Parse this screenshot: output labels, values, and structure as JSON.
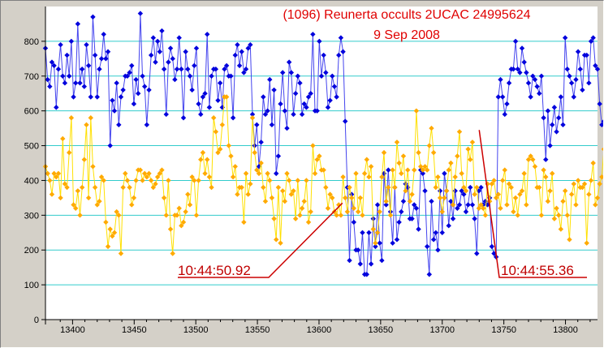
{
  "chart_data": {
    "type": "line",
    "title": "(1096) Reunerta occults 2UCAC 24995624",
    "subtitle": "9 Sep 2008",
    "xlabel": "",
    "ylabel": "",
    "xlim": [
      13378,
      13826
    ],
    "ylim": [
      0,
      900
    ],
    "x_ticks": [
      13400,
      13450,
      13500,
      13550,
      13600,
      13650,
      13700,
      13750,
      13800
    ],
    "y_ticks": [
      0,
      100,
      200,
      300,
      400,
      500,
      600,
      700,
      800
    ],
    "grid": "horizontal",
    "legend": "none",
    "series": [
      {
        "color": "#0000dd",
        "values_note_x_start": 13378,
        "values": [
          780,
          690,
          670,
          740,
          730,
          610,
          720,
          790,
          700,
          680,
          760,
          700,
          800,
          640,
          680,
          850,
          680,
          720,
          670,
          790,
          730,
          640,
          870,
          760,
          640,
          720,
          750,
          820,
          750,
          770,
          500,
          630,
          600,
          680,
          560,
          640,
          660,
          700,
          700,
          710,
          730,
          620,
          690,
          650,
          880,
          700,
          670,
          560,
          660,
          760,
          810,
          740,
          800,
          770,
          830,
          720,
          590,
          740,
          780,
          750,
          690,
          720,
          810,
          720,
          580,
          770,
          720,
          700,
          660,
          730,
          780,
          620,
          590,
          640,
          650,
          820,
          610,
          700,
          720,
          720,
          630,
          680,
          610,
          720,
          730,
          700,
          700,
          580,
          760,
          790,
          730,
          770,
          710,
          720,
          780,
          790,
          590,
          500,
          560,
          440,
          510,
          640,
          590,
          600,
          690,
          560,
          660,
          420,
          470,
          620,
          710,
          600,
          550,
          740,
          710,
          590,
          650,
          700,
          680,
          590,
          620,
          610,
          640,
          650,
          820,
          600,
          600,
          800,
          700,
          760,
          710,
          610,
          630,
          700,
          670,
          640,
          760,
          810,
          770,
          570,
          380,
          170,
          360,
          280,
          200,
          200,
          160,
          250,
          130,
          130,
          250,
          160,
          290,
          210,
          330,
          220,
          170,
          420,
          330,
          430,
          310,
          220,
          380,
          230,
          280,
          310,
          340,
          390,
          380,
          290,
          290,
          330,
          320,
          260,
          430,
          420,
          370,
          210,
          130,
          340,
          230,
          250,
          200,
          370,
          250,
          420,
          370,
          270,
          340,
          290,
          370,
          320,
          330,
          370,
          360,
          310,
          330,
          380,
          330,
          290,
          190,
          370,
          380,
          330,
          340,
          330,
          350,
          210,
          190,
          180,
          640,
          690,
          640,
          590,
          620,
          680,
          720,
          720,
          800,
          720,
          710,
          780,
          740,
          710,
          680,
          640,
          700,
          690,
          670,
          650,
          700,
          580,
          460,
          600,
          500,
          560,
          610,
          540,
          580,
          640,
          560,
          810,
          720,
          700,
          680,
          640,
          690,
          770,
          720,
          660,
          760,
          760,
          680,
          800,
          810,
          730,
          720,
          620,
          560,
          570,
          600,
          470,
          540,
          540,
          610,
          680,
          600,
          510
        ],
        "x_start": 13378,
        "x_step": 1.75
      },
      {
        "color": "#ffaa00",
        "x_start": 13378,
        "x_step": 1.75,
        "values": [
          440,
          420,
          400,
          360,
          420,
          410,
          420,
          350,
          520,
          390,
          380,
          480,
          580,
          330,
          320,
          370,
          300,
          380,
          460,
          560,
          350,
          580,
          440,
          380,
          330,
          340,
          410,
          400,
          280,
          210,
          260,
          240,
          250,
          310,
          300,
          190,
          380,
          420,
          400,
          380,
          330,
          350,
          400,
          430,
          430,
          400,
          420,
          410,
          420,
          400,
          380,
          390,
          410,
          420,
          430,
          350,
          300,
          400,
          260,
          190,
          300,
          300,
          320,
          270,
          280,
          310,
          360,
          330,
          410,
          400,
          300,
          400,
          460,
          480,
          420,
          460,
          410,
          380,
          580,
          540,
          480,
          490,
          560,
          640,
          640,
          500,
          470,
          410,
          440,
          360,
          380,
          380,
          280,
          420,
          360,
          390,
          580,
          480,
          430,
          420,
          450,
          380,
          340,
          420,
          400,
          350,
          290,
          230,
          380,
          220,
          370,
          340,
          420,
          400,
          360,
          370,
          290,
          400,
          300,
          320,
          340,
          400,
          280,
          310,
          500,
          420,
          460,
          470,
          430,
          430,
          380,
          320,
          360,
          350,
          310,
          300,
          330,
          300,
          410,
          350,
          310,
          380,
          350,
          320,
          420,
          310,
          350,
          300,
          420,
          460,
          410,
          440,
          260,
          220,
          250,
          310,
          410,
          480,
          340,
          380,
          300,
          430,
          380,
          510,
          450,
          420,
          470,
          370,
          430,
          340,
          360,
          430,
          600,
          480,
          440,
          430,
          440,
          430,
          500,
          550,
          480,
          380,
          410,
          350,
          310,
          350,
          370,
          430,
          450,
          330,
          410,
          470,
          540,
          420,
          380,
          370,
          490,
          460,
          510,
          360,
          380,
          320,
          330,
          320,
          300,
          390,
          340,
          390,
          400,
          350,
          360,
          320,
          400,
          430,
          330,
          390,
          380,
          310,
          350,
          300,
          360,
          370,
          420,
          330,
          460,
          470,
          460,
          440,
          380,
          380,
          300,
          430,
          410,
          340,
          370,
          420,
          290,
          320,
          300,
          260,
          340,
          370,
          300,
          230,
          360,
          390,
          330,
          400,
          380,
          380,
          390,
          220,
          360,
          400,
          450,
          330,
          350,
          390,
          410,
          490,
          500
        ]
      }
    ],
    "annotations": [
      {
        "label": "10:44:50.92",
        "x": 13619,
        "y": 335
      },
      {
        "label": "10:44:55.36",
        "x": 13730,
        "y": 545
      }
    ]
  }
}
